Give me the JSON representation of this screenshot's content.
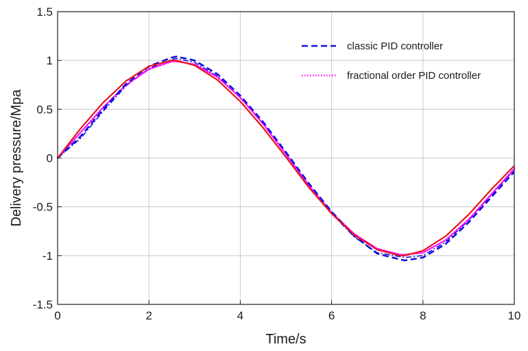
{
  "chart_data": {
    "type": "line",
    "xlabel": "Time/s",
    "ylabel": "Delivery pressure/Mpa",
    "xlim": [
      0,
      10
    ],
    "ylim": [
      -1.5,
      1.5
    ],
    "x_ticks": [
      "0",
      "2",
      "4",
      "6",
      "8",
      "10"
    ],
    "y_ticks": [
      "-1.5",
      "-1",
      "-0.5",
      "0",
      "0.5",
      "1",
      "1.5"
    ],
    "grid": true,
    "legend_position": "top-right",
    "legend": [
      "classic PID controller",
      "fractional order PID controller"
    ],
    "x": [
      0,
      0.5,
      1,
      1.5,
      2,
      2.5,
      2.6,
      3,
      3.5,
      4,
      4.5,
      5,
      5.5,
      6,
      6.5,
      7,
      7.5,
      7.6,
      8,
      8.5,
      9,
      9.5,
      10
    ],
    "series": [
      {
        "style": "solid",
        "color": "#e8141b",
        "values": [
          0,
          0.3,
          0.57,
          0.79,
          0.94,
          1.0,
          1.0,
          0.95,
          0.8,
          0.58,
          0.31,
          0.01,
          -0.3,
          -0.57,
          -0.79,
          -0.94,
          -1.0,
          -1.0,
          -0.95,
          -0.8,
          -0.58,
          -0.32,
          -0.08
        ]
      },
      {
        "name": "classic PID controller",
        "style": "dashed",
        "color": "#1010e0",
        "values": [
          0,
          0.22,
          0.5,
          0.76,
          0.94,
          1.03,
          1.04,
          1.0,
          0.86,
          0.64,
          0.37,
          0.06,
          -0.26,
          -0.55,
          -0.8,
          -0.98,
          -1.04,
          -1.05,
          -1.02,
          -0.88,
          -0.66,
          -0.4,
          -0.14
        ]
      },
      {
        "name": "fractional order PID controller",
        "style": "dotted",
        "color": "#ff00ff",
        "values": [
          0,
          0.26,
          0.52,
          0.75,
          0.91,
          0.99,
          0.99,
          0.96,
          0.83,
          0.62,
          0.35,
          0.04,
          -0.28,
          -0.56,
          -0.78,
          -0.93,
          -0.99,
          -0.99,
          -0.97,
          -0.84,
          -0.63,
          -0.37,
          -0.11
        ]
      },
      {
        "style": "dash-dot",
        "color": "#1010e0",
        "values": [
          0,
          0.2,
          0.48,
          0.74,
          0.92,
          1.01,
          1.02,
          0.98,
          0.84,
          0.62,
          0.35,
          0.04,
          -0.28,
          -0.57,
          -0.81,
          -0.97,
          -1.01,
          -1.02,
          -1.0,
          -0.86,
          -0.64,
          -0.38,
          -0.12
        ]
      }
    ]
  }
}
